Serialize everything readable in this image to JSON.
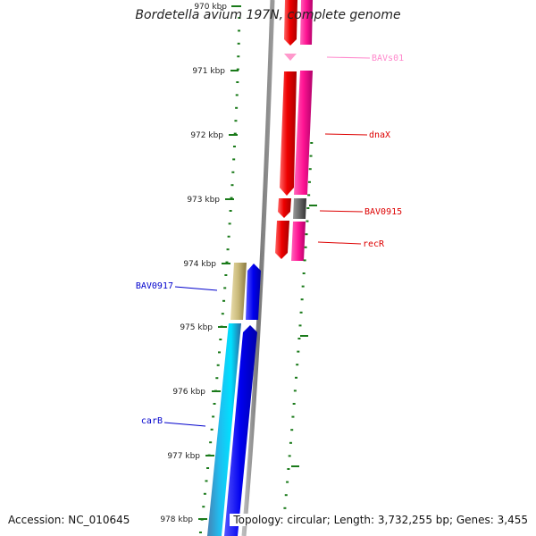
{
  "title": "Bordetella avium 197N, complete genome",
  "footer": {
    "accession": "Accession: NC_010645",
    "summary": "Topology: circular; Length: 3,732,255 bp; Genes: 3,455"
  },
  "ruler": {
    "labels": [
      "970 kbp",
      "971 kbp",
      "972 kbp",
      "973 kbp",
      "974 kbp",
      "975 kbp",
      "976 kbp",
      "977 kbp",
      "978 kbp"
    ]
  },
  "genes": [
    {
      "id": "BAVs01",
      "label": "BAVs01",
      "color": "#ff88cc"
    },
    {
      "id": "dnaX",
      "label": "dnaX",
      "color": "#dd0000"
    },
    {
      "id": "BAV0915",
      "label": "BAV0915",
      "color": "#dd0000"
    },
    {
      "id": "recR",
      "label": "recR",
      "color": "#dd0000"
    },
    {
      "id": "BAV0917",
      "label": "BAV0917",
      "color": "#0000cc"
    },
    {
      "id": "carB",
      "label": "carB",
      "color": "#0000cc"
    }
  ],
  "colors": {
    "forward_strand": "#ee0000",
    "forward_cog": "#ff1493",
    "reverse_strand": "#0000ee",
    "reverse_cog_khaki": "#c8b878",
    "reverse_cog_cyan": "#22bbee",
    "gray_cog": "#666666",
    "backbone": "#888888",
    "ticks": "#1a7a1a"
  }
}
